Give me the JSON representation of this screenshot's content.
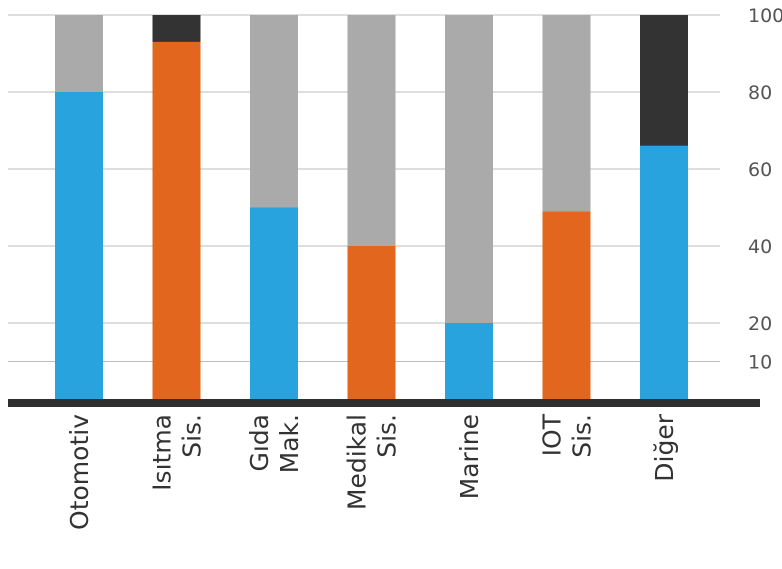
{
  "chart_data": {
    "type": "bar",
    "stacked": true,
    "categories": [
      [
        "Otomotiv"
      ],
      [
        "Isıtma",
        "Sis."
      ],
      [
        "Gıda",
        "Mak."
      ],
      [
        "Medikal",
        "Sis."
      ],
      [
        "Marine"
      ],
      [
        "IOT",
        "Sis."
      ],
      [
        "Diğer"
      ]
    ],
    "segments": [
      {
        "value": 80,
        "color": "#29a3dd",
        "rest": 20,
        "rest_color": "#aaaaaa"
      },
      {
        "value": 93,
        "color": "#e3661e",
        "rest": 7,
        "rest_color": "#333333"
      },
      {
        "value": 50,
        "color": "#29a3dd",
        "rest": 50,
        "rest_color": "#aaaaaa"
      },
      {
        "value": 40,
        "color": "#e3661e",
        "rest": 60,
        "rest_color": "#aaaaaa"
      },
      {
        "value": 20,
        "color": "#29a3dd",
        "rest": 80,
        "rest_color": "#aaaaaa"
      },
      {
        "value": 49,
        "color": "#e3661e",
        "rest": 51,
        "rest_color": "#aaaaaa"
      },
      {
        "value": 66,
        "color": "#29a3dd",
        "rest": 34,
        "rest_color": "#333333"
      }
    ],
    "yticks": [
      10,
      20,
      40,
      60,
      80,
      100
    ],
    "ylim": [
      0,
      100
    ],
    "y_axis_position": "right",
    "grid": true,
    "title": "",
    "xlabel": "",
    "ylabel": ""
  }
}
